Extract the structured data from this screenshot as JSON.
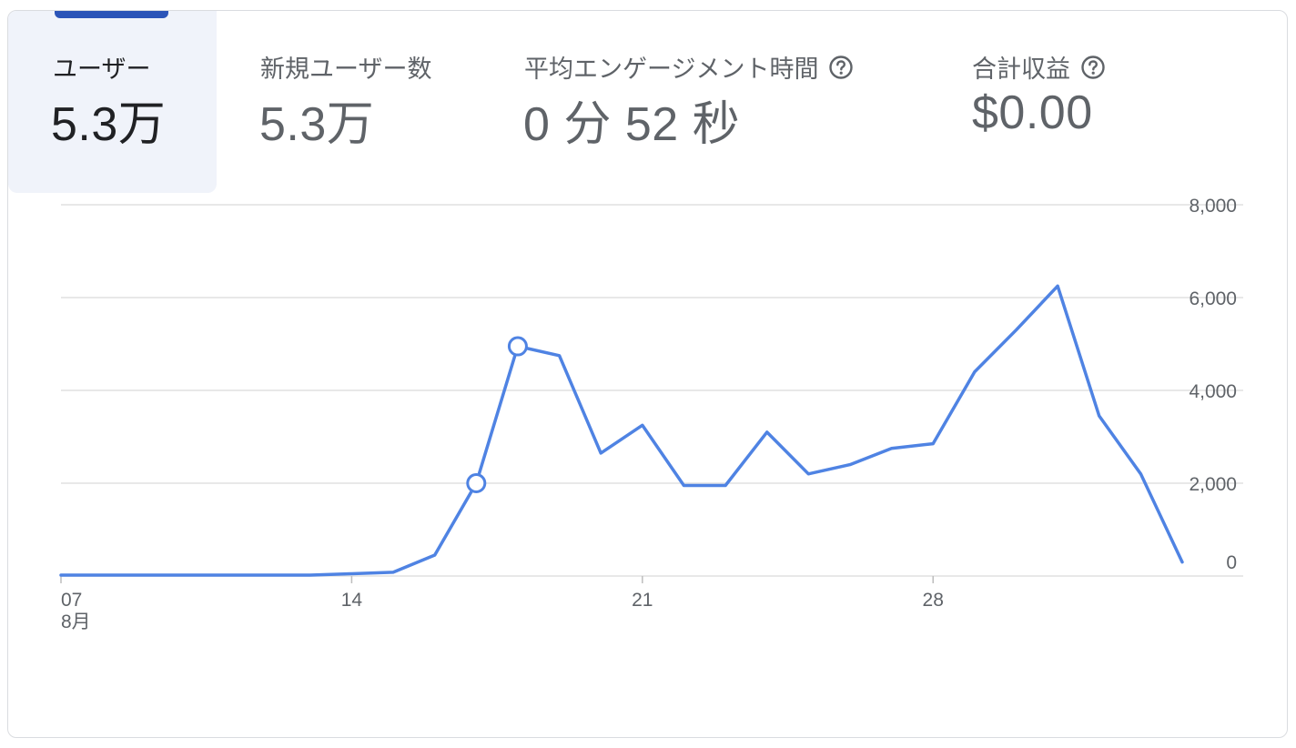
{
  "metrics": [
    {
      "label": "ユーザー",
      "value": "5.3万",
      "active": true,
      "help": false
    },
    {
      "label": "新規ユーザー数",
      "value": "5.3万",
      "active": false,
      "help": false
    },
    {
      "label": "平均エンゲージメント時間",
      "value": "0 分 52 秒",
      "active": false,
      "help": true
    },
    {
      "label": "合計収益",
      "value": "$0.00",
      "active": false,
      "help": true
    }
  ],
  "colors": {
    "line": "#4f83e3",
    "accent": "#2b54b8",
    "active_bg": "#f0f3fa",
    "grid": "#e0e0e0"
  },
  "chart_data": {
    "type": "line",
    "series": [
      {
        "x": [
          "2024-08-07",
          "2024-08-08",
          "2024-08-09",
          "2024-08-10",
          "2024-08-11",
          "2024-08-12",
          "2024-08-13",
          "2024-08-14",
          "2024-08-15",
          "2024-08-16",
          "2024-08-17",
          "2024-08-18",
          "2024-08-19",
          "2024-08-20",
          "2024-08-21",
          "2024-08-22",
          "2024-08-23",
          "2024-08-24",
          "2024-08-25",
          "2024-08-26",
          "2024-08-27",
          "2024-08-28",
          "2024-08-29",
          "2024-08-30",
          "2024-08-31",
          "2024-09-01",
          "2024-09-02",
          "2024-09-03"
        ],
        "values": [
          20,
          20,
          20,
          20,
          20,
          20,
          20,
          50,
          80,
          450,
          2000,
          4950,
          4750,
          2650,
          3250,
          1950,
          1950,
          3100,
          2200,
          2400,
          2750,
          2850,
          4400,
          5300,
          6250,
          3450,
          2200,
          300
        ]
      }
    ],
    "markers": [
      "2024-08-17",
      "2024-08-18"
    ],
    "x_ticks": [
      {
        "x": "2024-08-07",
        "label": "07",
        "sublabel": "8月"
      },
      {
        "x": "2024-08-14",
        "label": "14",
        "sublabel": ""
      },
      {
        "x": "2024-08-21",
        "label": "21",
        "sublabel": ""
      },
      {
        "x": "2024-08-28",
        "label": "28",
        "sublabel": ""
      }
    ],
    "y_ticks": [
      {
        "value": 0,
        "label": "0"
      },
      {
        "value": 2000,
        "label": "2,000"
      },
      {
        "value": 4000,
        "label": "4,000"
      },
      {
        "value": 6000,
        "label": "6,000"
      },
      {
        "value": 8000,
        "label": "8,000"
      }
    ],
    "ylim": [
      0,
      8000
    ],
    "grid": true,
    "y_axis_side": "right"
  }
}
